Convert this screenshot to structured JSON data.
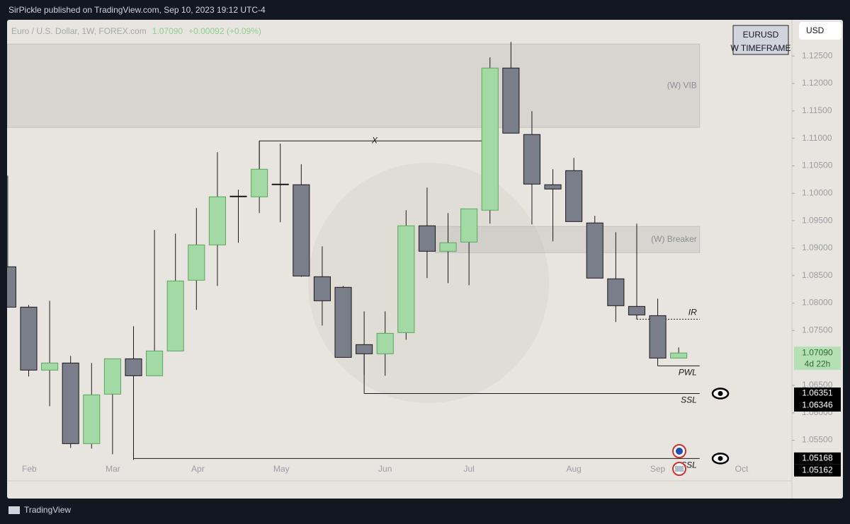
{
  "header": {
    "title": "SirPickle published on TradingView.com, Sep 10, 2023 19:12 UTC-4"
  },
  "footer": {
    "brand": "TradingView"
  },
  "chart_data": {
    "type": "candlestick",
    "symbol": "Euro / U.S. Dollar, 1W, FOREX.com",
    "last": "1.07090",
    "change": "+0.00092 (+0.09%)",
    "badge": {
      "title": "EURUSD",
      "subtitle": "W TIMEFRAME"
    },
    "currency": "USD",
    "x": [
      0,
      1,
      2,
      3,
      4,
      5,
      6,
      7,
      8,
      9,
      10,
      11,
      12,
      13,
      14,
      15,
      16,
      17,
      18,
      19,
      20,
      21,
      22,
      23,
      24,
      25,
      26,
      27,
      28,
      29,
      30,
      31,
      32
    ],
    "open": [
      1.0866,
      1.07925,
      1.06778,
      1.06907,
      1.05438,
      1.0634,
      1.06984,
      1.06675,
      1.07126,
      1.08415,
      1.09059,
      1.09948,
      1.09935,
      1.10167,
      1.10155,
      1.08479,
      1.08286,
      1.07242,
      1.07075,
      1.07461,
      1.09407,
      1.08943,
      1.09111,
      1.09691,
      1.12281,
      1.1107,
      1.10155,
      1.10412,
      1.09459,
      1.08441,
      1.07938,
      1.0777,
      1.06997
    ],
    "high": [
      1.10322,
      1.07964,
      1.08041,
      1.07036,
      1.06907,
      1.06984,
      1.07577,
      1.0933,
      1.09265,
      1.09729,
      1.10747,
      1.10064,
      1.10954,
      1.10902,
      1.10528,
      1.09033,
      1.08312,
      1.07848,
      1.07848,
      1.09691,
      1.10103,
      1.09639,
      1.09716,
      1.12474,
      1.12758,
      1.11495,
      1.10438,
      1.10644,
      1.09588,
      1.09291,
      1.09446,
      1.0808,
      1.07191
    ],
    "low": [
      1.07925,
      1.06662,
      1.06121,
      1.05361,
      1.05348,
      1.05245,
      1.05142,
      1.06675,
      1.07126,
      1.07874,
      1.08312,
      1.09098,
      1.09639,
      1.09472,
      1.08479,
      1.0759,
      1.0701,
      1.06688,
      1.06675,
      1.07332,
      1.08454,
      1.08363,
      1.08325,
      1.09446,
      1.11095,
      1.09433,
      1.09124,
      1.09484,
      1.08454,
      1.07654,
      1.07706,
      1.06997,
      1.06997
    ],
    "close": [
      1.07925,
      1.06778,
      1.06907,
      1.05438,
      1.06327,
      1.06984,
      1.06675,
      1.07126,
      1.08402,
      1.09059,
      1.09935,
      1.09935,
      1.10438,
      1.10155,
      1.08492,
      1.08041,
      1.0701,
      1.07075,
      1.07448,
      1.09407,
      1.08943,
      1.09098,
      1.09716,
      1.12281,
      1.11095,
      1.10167,
      1.10077,
      1.09484,
      1.08454,
      1.07951,
      1.07783,
      1.06997,
      1.0709
    ],
    "up_color": "#a3d9a5",
    "down_color": "#7a7d8a",
    "xlim": [
      -0.03,
      37.4
    ],
    "ylim": [
      1.0476,
      1.1316
    ],
    "xticks": [
      {
        "value": 1.03,
        "label": "Feb"
      },
      {
        "value": 5.02,
        "label": "Mar"
      },
      {
        "value": 9.07,
        "label": "Apr"
      },
      {
        "value": 13.05,
        "label": "May"
      },
      {
        "value": 18.0,
        "label": "Jun"
      },
      {
        "value": 22.0,
        "label": "Jul"
      },
      {
        "value": 27.0,
        "label": "Aug"
      },
      {
        "value": 31.0,
        "label": "Sep"
      },
      {
        "value": 35.0,
        "label": "Oct"
      }
    ],
    "yticks": [
      {
        "value": 1.125,
        "label": "1.12500"
      },
      {
        "value": 1.12,
        "label": "1.12000"
      },
      {
        "value": 1.115,
        "label": "1.11500"
      },
      {
        "value": 1.11,
        "label": "1.11000"
      },
      {
        "value": 1.105,
        "label": "1.10500"
      },
      {
        "value": 1.1,
        "label": "1.10000"
      },
      {
        "value": 1.095,
        "label": "1.09500"
      },
      {
        "value": 1.09,
        "label": "1.09000"
      },
      {
        "value": 1.085,
        "label": "1.08500"
      },
      {
        "value": 1.08,
        "label": "1.08000"
      },
      {
        "value": 1.075,
        "label": "1.07500"
      },
      {
        "value": 1.065,
        "label": "1.06500"
      },
      {
        "value": 1.06,
        "label": "1.06000"
      },
      {
        "value": 1.055,
        "label": "1.05500"
      }
    ],
    "zones": [
      {
        "label": "(W) VIB",
        "range": [
          1.11198,
          1.12719
        ],
        "from": -0.03,
        "to": 33.0
      },
      {
        "label": "(W) Breaker",
        "range": [
          1.08917,
          1.09394
        ],
        "from": 20.4,
        "to": 33.0
      }
    ],
    "levels": [
      {
        "label": "X",
        "value": 1.10954,
        "from": 12,
        "to": 23,
        "style": "solid"
      },
      {
        "label": "IR",
        "value": 1.07706,
        "from": 30,
        "to": 33.0,
        "style": "dotted"
      },
      {
        "label": "PWL",
        "value": 1.06855,
        "from": 31,
        "to": 33.0,
        "style": "solid"
      },
      {
        "label": "SSL",
        "value": 1.06351,
        "from": 17,
        "to": 33.0,
        "style": "solid"
      },
      {
        "label": "SSL",
        "value": 1.05168,
        "from": 6,
        "to": 33.0,
        "style": "solid"
      }
    ],
    "price_labels": [
      1.06351,
      1.06346,
      1.05168,
      1.05162
    ],
    "current": {
      "value": 1.0709,
      "label": "1.07090",
      "countdown": "4d 22h"
    }
  }
}
